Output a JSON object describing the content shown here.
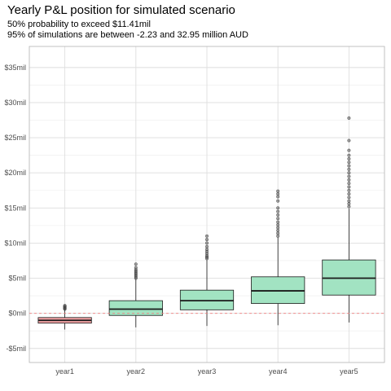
{
  "chart_data": {
    "type": "box",
    "title": "Yearly P&L position for simulated scenario",
    "subtitle_line1": "50% probability to exceed $11.41mil",
    "subtitle_line2": "95% of simulations are between -2.23 and 32.95 million AUD",
    "xlabel": "",
    "ylabel": "",
    "ylim": [
      -7,
      38
    ],
    "y_ticks": [
      -5,
      0,
      5,
      10,
      15,
      20,
      25,
      30,
      35
    ],
    "y_tick_labels": [
      "-$5mil",
      "$0mil",
      "$5mil",
      "$10mil",
      "$15mil",
      "$20mil",
      "$25mil",
      "$30mil",
      "$35mil"
    ],
    "zero_reference_line": true,
    "grid": true,
    "categories": [
      "year1",
      "year2",
      "year3",
      "year4",
      "year5"
    ],
    "boxes": [
      {
        "category": "year1",
        "whisker_low": -2.3,
        "q1": -1.4,
        "median": -1.0,
        "q3": -0.6,
        "whisker_high": 0.5,
        "outliers": [
          0.6,
          0.7,
          0.8,
          0.9,
          1.0,
          1.1
        ],
        "fill": "#f4a3a5"
      },
      {
        "category": "year2",
        "whisker_low": -2.0,
        "q1": -0.3,
        "median": 0.6,
        "q3": 1.8,
        "whisker_high": 4.9,
        "outliers": [
          5.0,
          5.2,
          5.4,
          5.6,
          5.8,
          6.0,
          6.2,
          6.5,
          7.0
        ],
        "fill": "#a2e3c2"
      },
      {
        "category": "year3",
        "whisker_low": -1.8,
        "q1": 0.5,
        "median": 1.8,
        "q3": 3.3,
        "whisker_high": 7.6,
        "outliers": [
          7.8,
          8.0,
          8.2,
          8.5,
          8.8,
          9.1,
          9.5,
          10.0,
          10.5,
          11.0
        ],
        "fill": "#a2e3c2"
      },
      {
        "category": "year4",
        "whisker_low": -1.7,
        "q1": 1.4,
        "median": 3.2,
        "q3": 5.2,
        "whisker_high": 10.8,
        "outliers": [
          11.0,
          11.4,
          11.8,
          12.2,
          12.6,
          13.0,
          13.5,
          14.0,
          14.5,
          15.0,
          16.0,
          16.6,
          17.0,
          17.4
        ],
        "fill": "#a2e3c2"
      },
      {
        "category": "year5",
        "whisker_low": -1.3,
        "q1": 2.6,
        "median": 5.0,
        "q3": 7.6,
        "whisker_high": 14.9,
        "outliers": [
          15.2,
          15.6,
          16.0,
          16.5,
          17.0,
          17.5,
          18.0,
          18.5,
          19.0,
          19.5,
          20.0,
          20.5,
          21.0,
          21.5,
          22.0,
          22.5,
          23.2,
          24.6,
          27.8
        ],
        "fill": "#a2e3c2"
      }
    ]
  }
}
